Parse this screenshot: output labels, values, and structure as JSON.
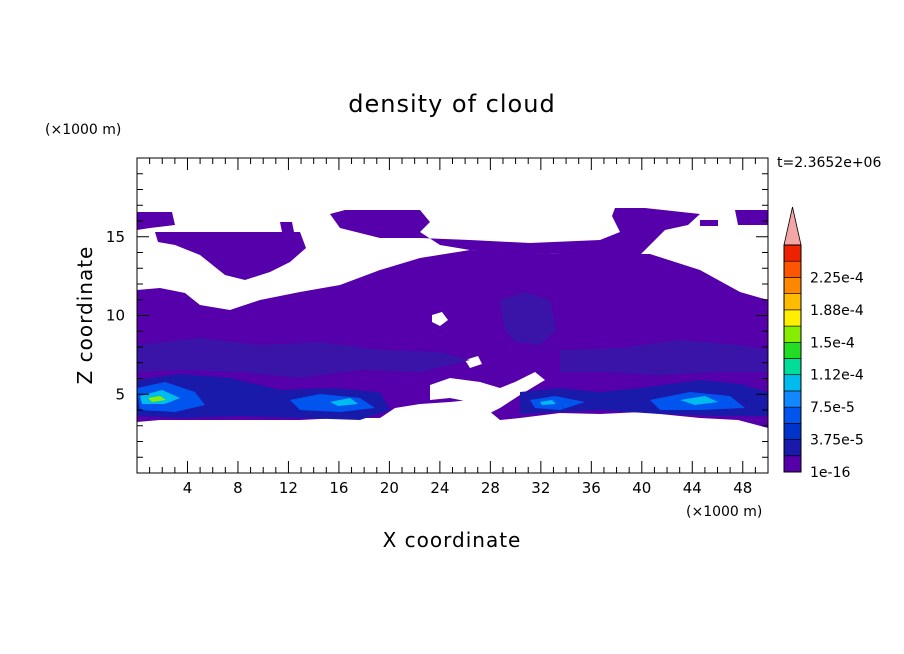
{
  "chart_data": {
    "type": "heatmap",
    "title": "density of cloud",
    "xlabel": "X coordinate",
    "ylabel": "Z coordinate",
    "x_unit": "(×1000 m)",
    "y_unit": "(×1000 m)",
    "time_label": "t=2.3652e+06",
    "xlim": [
      0,
      50
    ],
    "ylim": [
      0,
      20
    ],
    "x_ticks": [
      4,
      8,
      12,
      16,
      20,
      24,
      28,
      32,
      36,
      40,
      44,
      48
    ],
    "y_ticks": [
      5,
      10,
      15
    ],
    "colorbar": {
      "labels": [
        "1e-16",
        "3.75e-5",
        "7.5e-5",
        "1.12e-4",
        "1.5e-4",
        "1.88e-4",
        "2.25e-4"
      ],
      "colors": [
        "#5500aa",
        "#1a1aaa",
        "#0033cc",
        "#0055ee",
        "#1188ff",
        "#00bbee",
        "#00dd99",
        "#22dd22",
        "#88ee00",
        "#ffee00",
        "#ffbb00",
        "#ff8800",
        "#ff5500",
        "#ee2200"
      ],
      "extend_max_color": "#f4a6a6"
    }
  }
}
